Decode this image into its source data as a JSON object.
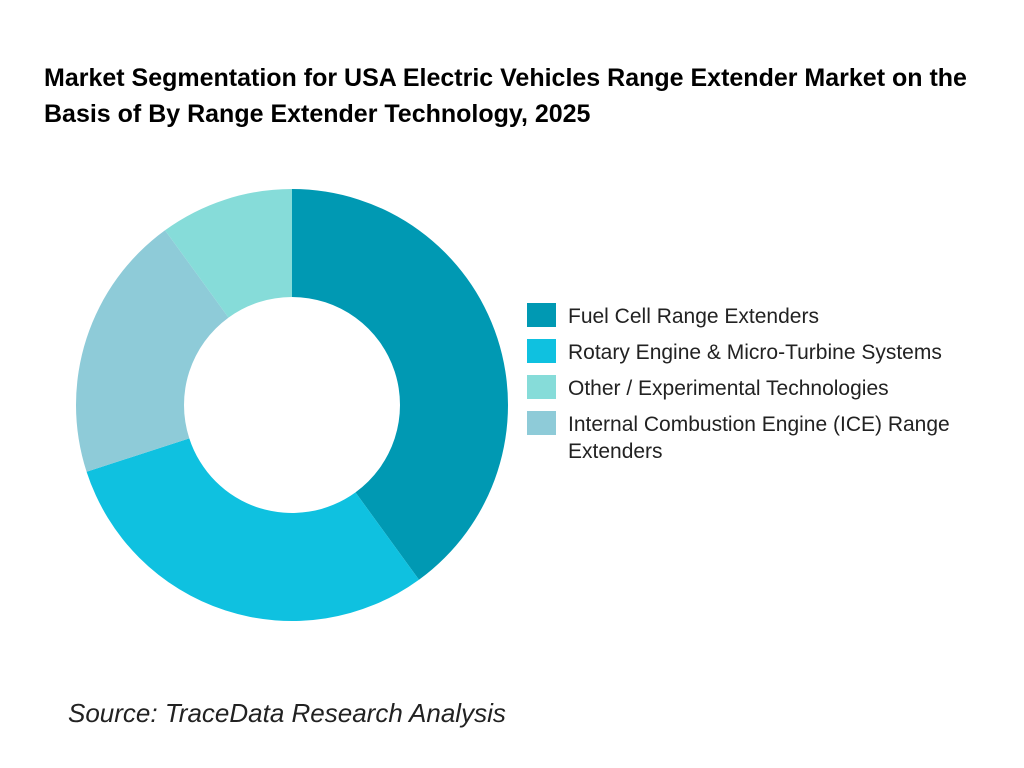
{
  "chart_data": {
    "type": "pie",
    "donut": true,
    "title": "Market Segmentation for USA Electric Vehicles Range Extender Market on the Basis of  By Range Extender Technology, 2025",
    "slices": [
      {
        "name": "Fuel Cell Range Extenders",
        "value": 40,
        "color": "#0099b3"
      },
      {
        "name": "Rotary Engine & Micro-Turbine Systems",
        "value": 30,
        "color": "#0fc1e0"
      },
      {
        "name": "Internal Combustion Engine (ICE) Range Extenders",
        "value": 20,
        "color": "#8ecbd8"
      },
      {
        "name": "Other / Experimental Technologies",
        "value": 10,
        "color": "#86dcd9"
      }
    ],
    "legend_order": [
      0,
      1,
      3,
      2
    ],
    "legend_placement": "right"
  },
  "source": "Source: TraceData Research Analysis"
}
